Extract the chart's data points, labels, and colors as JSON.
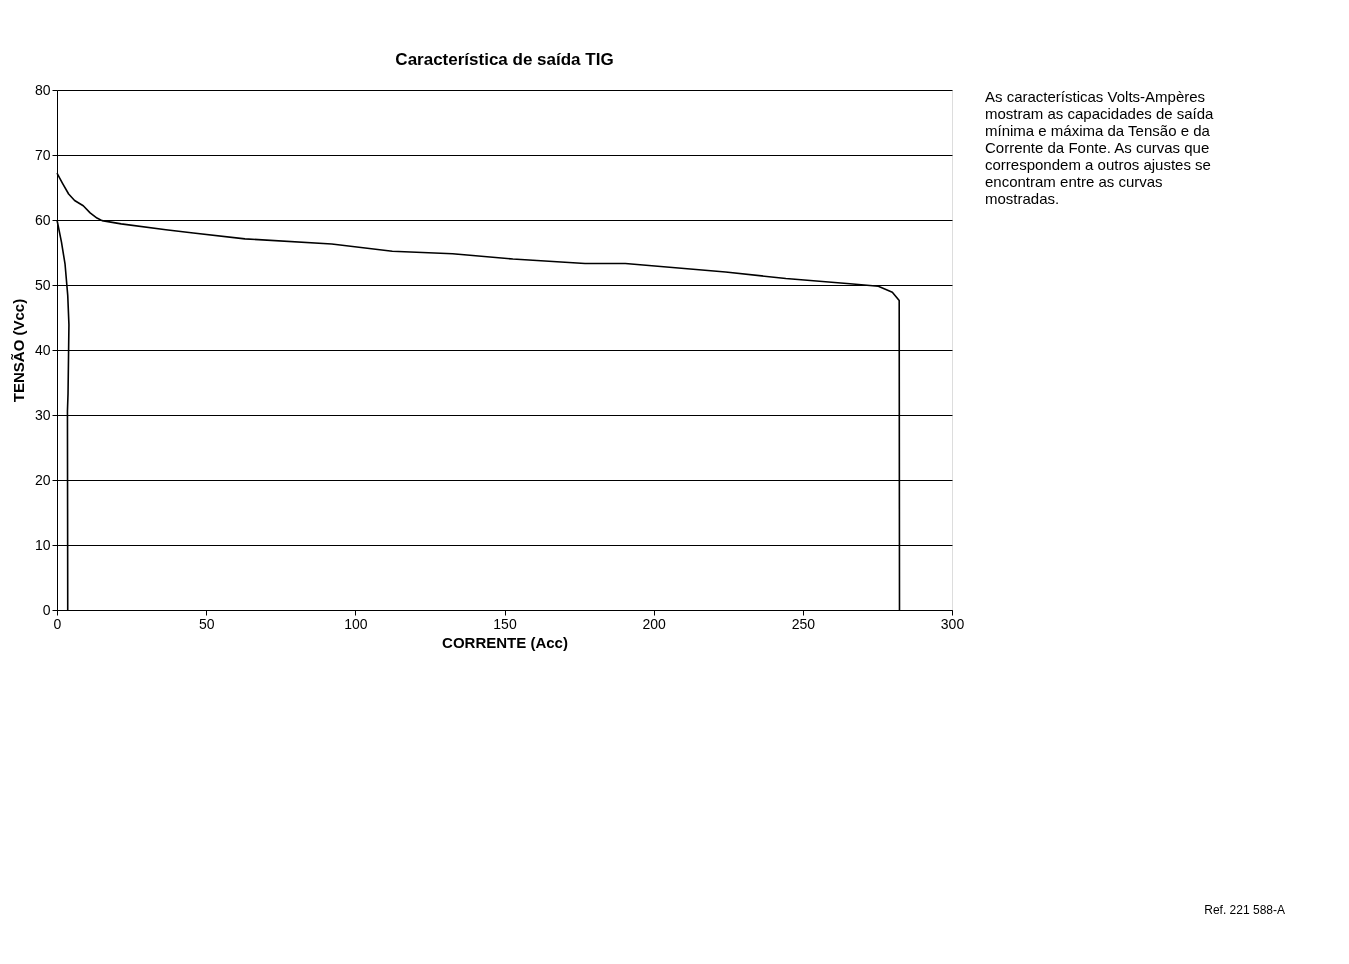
{
  "chart_data": {
    "type": "line",
    "title": "Característica de saída TIG",
    "xlabel": "CORRENTE (Acc)",
    "ylabel": "TENSÃO (Vcc)",
    "xlim": [
      0,
      300
    ],
    "xticks": [
      0,
      50,
      100,
      150,
      200,
      250,
      300
    ],
    "ylim": [
      0,
      80
    ],
    "yticks": [
      0,
      10,
      20,
      30,
      40,
      50,
      60,
      70,
      80
    ],
    "grid": "y",
    "legend": false,
    "marker": "none",
    "line_style": "solid",
    "series": [
      {
        "color": "#000000",
        "x": [
          0,
          1.5,
          2.7,
          3.6,
          4.0,
          3.7,
          3.5,
          3.6
        ],
        "values": [
          60,
          56.6,
          53.2,
          48.4,
          43.9,
          33.3,
          30.6,
          0
        ]
      },
      {
        "color": "#000000",
        "x": [
          0,
          1.9,
          3.9,
          5.9,
          8.8,
          11.1,
          13.4,
          15.1,
          21.5,
          36.5,
          45.7,
          63.0,
          92.1,
          112.4,
          132.6,
          152.8,
          177.0,
          190.5,
          224.1,
          244.3,
          265.8,
          275.3,
          280.0,
          282.3,
          282.4
        ],
        "values": [
          67.2,
          65.6,
          64.0,
          63.0,
          62.2,
          61.1,
          60.3,
          59.9,
          59.4,
          58.5,
          58.0,
          57.1,
          56.3,
          55.2,
          54.8,
          54.0,
          53.3,
          53.3,
          52.0,
          51.0,
          50.2,
          49.8,
          48.9,
          47.6,
          0
        ]
      }
    ],
    "annotations": [
      "As características Volts-Ampères mostram as capacidades de saída mínima e máxima da Tensão e da Corrente da Fonte. As curvas que correspondem a outros ajustes se encontram entre as curvas mostradas.",
      "Ref. 221 588-A"
    ]
  }
}
